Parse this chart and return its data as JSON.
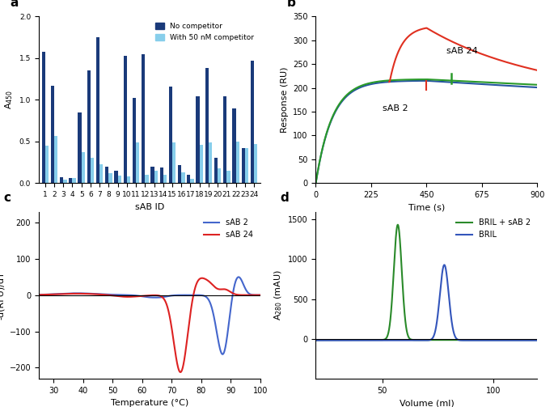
{
  "panel_a": {
    "sab_ids": [
      1,
      2,
      3,
      4,
      5,
      6,
      7,
      8,
      9,
      10,
      11,
      12,
      13,
      14,
      15,
      16,
      17,
      18,
      19,
      20,
      21,
      22,
      23,
      24
    ],
    "no_competitor": [
      1.57,
      1.17,
      0.07,
      0.06,
      0.85,
      1.35,
      1.75,
      0.2,
      0.15,
      1.53,
      1.02,
      1.55,
      0.2,
      0.19,
      1.16,
      0.22,
      0.1,
      1.04,
      1.38,
      0.3,
      1.04,
      0.9,
      0.42,
      1.47
    ],
    "with_competitor": [
      0.45,
      0.57,
      0.04,
      0.06,
      0.37,
      0.3,
      0.23,
      0.12,
      0.09,
      0.08,
      0.49,
      0.1,
      0.15,
      0.1,
      0.49,
      0.13,
      0.05,
      0.46,
      0.49,
      0.18,
      0.15,
      0.5,
      0.42,
      0.47
    ],
    "color_no": "#1a3a7a",
    "color_with": "#87ceeb",
    "ylabel": "A$_{450}$",
    "xlabel": "sAB ID",
    "ylim": [
      0,
      2.0
    ]
  },
  "panel_b": {
    "ylabel": "Response (RU)",
    "xlabel": "Time (s)",
    "xlim": [
      0,
      900
    ],
    "ylim": [
      0,
      350
    ],
    "yticks": [
      0,
      50,
      100,
      150,
      200,
      250,
      300,
      350
    ],
    "xticks": [
      0,
      225,
      450,
      675,
      900
    ],
    "color_sab2": "#2655a0",
    "color_sab24": "#e03020",
    "color_green": "#2a9a2a",
    "label_sab2": "sAB 2",
    "label_sab24": "sAB 24"
  },
  "panel_c": {
    "ylabel": "-d(RFU)/dT",
    "xlabel": "Temperature (°C)",
    "xlim": [
      25,
      100
    ],
    "ylim": [
      -230,
      230
    ],
    "xticks": [
      30,
      40,
      50,
      60,
      70,
      80,
      90,
      100
    ],
    "yticks": [
      -200,
      -100,
      0,
      100,
      200
    ],
    "color_sab2": "#4466cc",
    "color_sab24": "#dd2222",
    "label_sab2": "sAB 2",
    "label_sab24": "sAB 24"
  },
  "panel_d": {
    "ylabel": "A$_{280}$ (mAU)",
    "xlabel": "Volume (ml)",
    "xlim": [
      20,
      120
    ],
    "ylim": [
      -500,
      1600
    ],
    "xticks": [
      50,
      100
    ],
    "yticks": [
      0,
      500,
      1000,
      1500
    ],
    "color_bril_sab2": "#2a8a2a",
    "color_bril": "#3355bb",
    "label_bril_sab2": "BRIL + sAB 2",
    "label_bril": "BRIL"
  }
}
